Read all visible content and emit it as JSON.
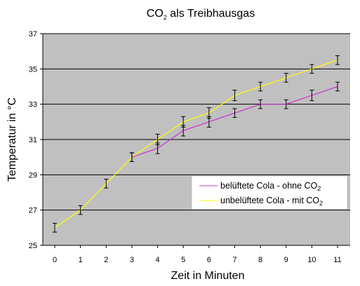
{
  "chart_data": {
    "type": "line",
    "title": {
      "main": "CO",
      "sub": "2",
      "rest": " als Treibhausgas"
    },
    "xlabel": "Zeit in Minuten",
    "ylabel": "Temperatur in °C",
    "x": [
      0,
      1,
      2,
      3,
      4,
      5,
      6,
      7,
      8,
      9,
      10,
      11
    ],
    "xticks": [
      "0",
      "1",
      "2",
      "3",
      "4",
      "5",
      "6",
      "7",
      "8",
      "9",
      "10",
      "11"
    ],
    "yticks": [
      "25",
      "27",
      "29",
      "31",
      "33",
      "35",
      "37"
    ],
    "ylim": [
      25,
      37
    ],
    "grid": "horizontal",
    "legend_position": "right",
    "plot_background": "#c0c0c0",
    "series": [
      {
        "name_main": "belüftete Cola - ohne CO",
        "name_sub": "2",
        "color": "#cc33cc",
        "x": [
          3,
          4,
          5,
          6,
          7,
          8,
          9,
          10,
          11
        ],
        "values": [
          30.0,
          30.5,
          31.5,
          32.0,
          32.5,
          33.0,
          33.0,
          33.5,
          34.0
        ],
        "errors": [
          0.25,
          0.3,
          0.3,
          0.3,
          0.25,
          0.25,
          0.25,
          0.3,
          0.25
        ]
      },
      {
        "name_main": "unbelüftete Cola - mit CO",
        "name_sub": "2",
        "color": "#ffff00",
        "x": [
          0,
          1,
          2,
          3,
          4,
          5,
          6,
          7,
          8,
          9,
          10,
          11
        ],
        "values": [
          26.0,
          27.0,
          28.5,
          30.0,
          31.0,
          32.0,
          32.5,
          33.5,
          34.0,
          34.5,
          35.0,
          35.5
        ],
        "errors": [
          0.25,
          0.25,
          0.25,
          0.25,
          0.3,
          0.3,
          0.3,
          0.3,
          0.25,
          0.25,
          0.25,
          0.25
        ]
      }
    ]
  }
}
